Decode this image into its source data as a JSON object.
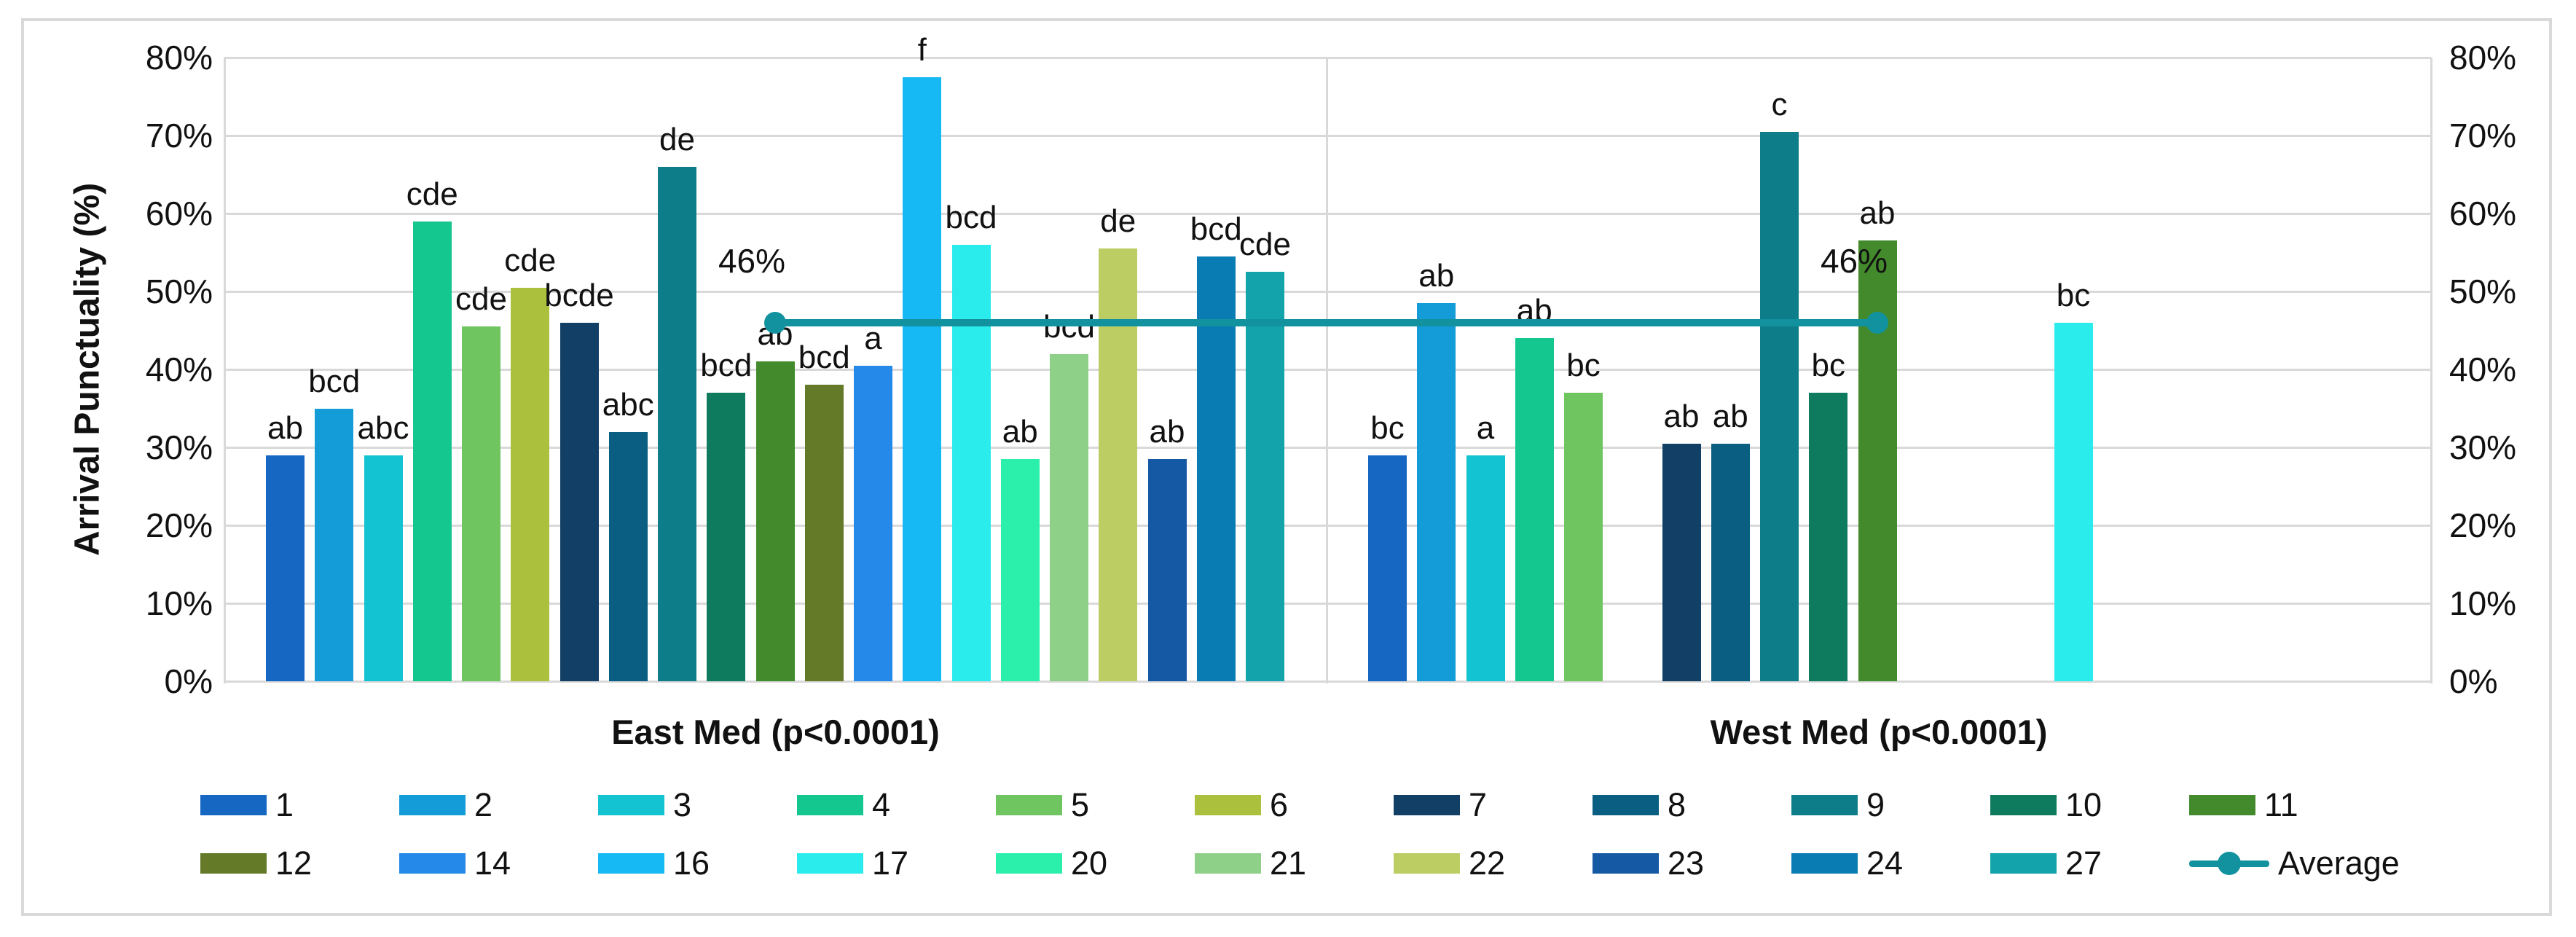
{
  "chart_data": {
    "type": "bar",
    "title": "",
    "ylabel": "Arrival Punctuality (%)",
    "ylim": [
      0,
      80
    ],
    "yticks": [
      {
        "value": 0,
        "label": "0%"
      },
      {
        "value": 10,
        "label": "10%"
      },
      {
        "value": 20,
        "label": "20%"
      },
      {
        "value": 30,
        "label": "30%"
      },
      {
        "value": 40,
        "label": "40%"
      },
      {
        "value": 50,
        "label": "50%"
      },
      {
        "value": 60,
        "label": "60%"
      },
      {
        "value": 70,
        "label": "70%"
      },
      {
        "value": 80,
        "label": "80%"
      }
    ],
    "slot_order": [
      "1",
      "2",
      "3",
      "4",
      "5",
      "6",
      "7",
      "8",
      "9",
      "10",
      "11",
      "12",
      "14",
      "16",
      "17",
      "20",
      "21",
      "22",
      "23",
      "24",
      "27"
    ],
    "series_colors": {
      "1": "#1667C2",
      "2": "#149CD8",
      "3": "#14C3D2",
      "4": "#14C78F",
      "5": "#6FC55F",
      "6": "#ABC13D",
      "7": "#123F66",
      "8": "#0A5E81",
      "9": "#0E7D8A",
      "10": "#0E7A5E",
      "11": "#438A2D",
      "12": "#647A28",
      "14": "#2489E8",
      "16": "#17B9F5",
      "17": "#2BECEC",
      "20": "#2BF0AC",
      "21": "#8FD089",
      "22": "#BCCE63",
      "23": "#1559A5",
      "24": "#0A7CB4",
      "27": "#12A3AB"
    },
    "groups": [
      {
        "label": "East Med (p<0.0001)",
        "bars": [
          {
            "series": "1",
            "value": 29,
            "letter": "ab"
          },
          {
            "series": "2",
            "value": 35,
            "letter": "bcd"
          },
          {
            "series": "3",
            "value": 29,
            "letter": "abc"
          },
          {
            "series": "4",
            "value": 59,
            "letter": "cde"
          },
          {
            "series": "5",
            "value": 45.5,
            "letter": "cde"
          },
          {
            "series": "6",
            "value": 50.5,
            "letter": "cde"
          },
          {
            "series": "7",
            "value": 46,
            "letter": "bcde"
          },
          {
            "series": "8",
            "value": 32,
            "letter": "abc"
          },
          {
            "series": "9",
            "value": 66,
            "letter": "de"
          },
          {
            "series": "10",
            "value": 37,
            "letter": "bcd"
          },
          {
            "series": "11",
            "value": 41,
            "letter": "ab"
          },
          {
            "series": "12",
            "value": 38,
            "letter": "bcd"
          },
          {
            "series": "14",
            "value": 40.5,
            "letter": "a"
          },
          {
            "series": "16",
            "value": 77.5,
            "letter": "f"
          },
          {
            "series": "17",
            "value": 56,
            "letter": "bcd"
          },
          {
            "series": "20",
            "value": 28.5,
            "letter": "ab"
          },
          {
            "series": "21",
            "value": 42,
            "letter": "bcd"
          },
          {
            "series": "22",
            "value": 55.5,
            "letter": "de"
          },
          {
            "series": "23",
            "value": 28.5,
            "letter": "ab"
          },
          {
            "series": "24",
            "value": 54.5,
            "letter": "bcd"
          },
          {
            "series": "27",
            "value": 52.5,
            "letter": "cde"
          }
        ]
      },
      {
        "label": "West Med (p<0.0001)",
        "bars": [
          {
            "series": "1",
            "value": 29,
            "letter": "bc"
          },
          {
            "series": "2",
            "value": 48.5,
            "letter": "ab"
          },
          {
            "series": "3",
            "value": 29,
            "letter": "a"
          },
          {
            "series": "4",
            "value": 44,
            "letter": "ab"
          },
          {
            "series": "5",
            "value": 37,
            "letter": "bc"
          },
          {
            "series": "7",
            "value": 30.5,
            "letter": "ab"
          },
          {
            "series": "8",
            "value": 30.5,
            "letter": "ab"
          },
          {
            "series": "9",
            "value": 70.5,
            "letter": "c"
          },
          {
            "series": "10",
            "value": 37,
            "letter": "bc"
          },
          {
            "series": "11",
            "value": 56.5,
            "letter": "ab"
          },
          {
            "series": "17",
            "value": 46,
            "letter": "bc"
          }
        ]
      }
    ],
    "average_line": {
      "name": "Average",
      "color": "#12929E",
      "points": [
        {
          "group": 0,
          "slot": "11",
          "value": 46,
          "label": "46%"
        },
        {
          "group": 1,
          "slot": "11",
          "value": 46,
          "label": "46%"
        }
      ]
    },
    "legend": {
      "rows": [
        [
          "1",
          "2",
          "3",
          "4",
          "5",
          "6",
          "7",
          "8",
          "9",
          "10",
          "11"
        ],
        [
          "12",
          "14",
          "16",
          "17",
          "20",
          "21",
          "22",
          "23",
          "24",
          "27",
          "Average"
        ]
      ],
      "average_label": "Average"
    },
    "grid": true,
    "legend_position": "bottom"
  }
}
